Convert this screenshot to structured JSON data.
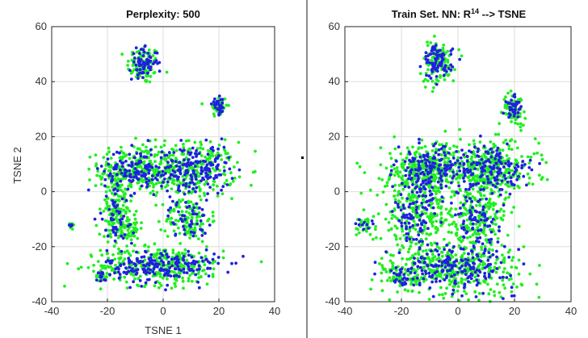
{
  "colors": {
    "series_a": "#2020e0",
    "series_b": "#22ee22",
    "divider": "#8a8a8a",
    "axis": "#262626",
    "grid": "#dedede"
  },
  "chart_data": [
    {
      "type": "scatter",
      "title": "Perplexity: 500",
      "xlabel": "TSNE 1",
      "ylabel": "TSNE 2",
      "xlim": [
        -40,
        40
      ],
      "ylim": [
        -40,
        60
      ],
      "xticks": [
        -40,
        -20,
        0,
        20,
        40
      ],
      "yticks": [
        -40,
        -20,
        0,
        20,
        40,
        60
      ],
      "grid": true,
      "series": [
        {
          "color": "#22ee22",
          "clusters": [
            {
              "center": [
                -7,
                46
              ],
              "spread": [
                3,
                3.5
              ],
              "n": 90
            },
            {
              "center": [
                20,
                31
              ],
              "spread": [
                1.5,
                2
              ],
              "n": 45
            },
            {
              "center": [
                -9,
                8
              ],
              "spread": [
                7,
                4.5
              ],
              "n": 260
            },
            {
              "center": [
                12,
                8
              ],
              "spread": [
                7,
                5
              ],
              "n": 260
            },
            {
              "center": [
                -17,
                -8
              ],
              "spread": [
                3,
                9
              ],
              "n": 150
            },
            {
              "center": [
                -13,
                -13
              ],
              "spread": [
                3,
                2.5
              ],
              "n": 60
            },
            {
              "center": [
                9,
                -10
              ],
              "spread": [
                4,
                4
              ],
              "n": 110
            },
            {
              "center": [
                0,
                -27
              ],
              "spread": [
                11,
                3.5
              ],
              "n": 300
            },
            {
              "center": [
                -22,
                -31
              ],
              "spread": [
                1.2,
                1.2
              ],
              "n": 20
            },
            {
              "center": [
                -33,
                -12
              ],
              "spread": [
                0.6,
                0.6
              ],
              "n": 6
            }
          ]
        },
        {
          "color": "#2020e0",
          "clusters": [
            {
              "center": [
                -7,
                47
              ],
              "spread": [
                2.5,
                2.5
              ],
              "n": 70
            },
            {
              "center": [
                20,
                31
              ],
              "spread": [
                1.2,
                1.5
              ],
              "n": 30
            },
            {
              "center": [
                -9,
                8
              ],
              "spread": [
                6,
                4
              ],
              "n": 140
            },
            {
              "center": [
                12,
                8
              ],
              "spread": [
                6,
                4.5
              ],
              "n": 160
            },
            {
              "center": [
                -17,
                -8
              ],
              "spread": [
                2.5,
                8
              ],
              "n": 60
            },
            {
              "center": [
                9,
                -10
              ],
              "spread": [
                3.5,
                3.5
              ],
              "n": 50
            },
            {
              "center": [
                0,
                -27
              ],
              "spread": [
                10,
                3
              ],
              "n": 200
            },
            {
              "center": [
                -22,
                -31
              ],
              "spread": [
                1,
                1
              ],
              "n": 12
            },
            {
              "center": [
                -33,
                -12
              ],
              "spread": [
                0.5,
                0.5
              ],
              "n": 5
            }
          ]
        }
      ]
    },
    {
      "type": "scatter",
      "title": "Train Set. NN:  R",
      "title_sup": "14",
      "title_tail": " --> TSNE",
      "xlabel": "",
      "ylabel": "",
      "xlim": [
        -40,
        40
      ],
      "ylim": [
        -40,
        60
      ],
      "xticks": [
        -40,
        -20,
        0,
        20,
        40
      ],
      "yticks": [
        -40,
        -20,
        0,
        20,
        40,
        60
      ],
      "grid": true,
      "series": [
        {
          "color": "#22ee22",
          "clusters": [
            {
              "center": [
                -7,
                47
              ],
              "spread": [
                3,
                4
              ],
              "n": 110
            },
            {
              "center": [
                20,
                30
              ],
              "spread": [
                2,
                3
              ],
              "n": 60
            },
            {
              "center": [
                -10,
                8
              ],
              "spread": [
                8,
                5
              ],
              "n": 300
            },
            {
              "center": [
                12,
                8
              ],
              "spread": [
                8,
                5
              ],
              "n": 300
            },
            {
              "center": [
                -15,
                -8
              ],
              "spread": [
                6,
                9
              ],
              "n": 260
            },
            {
              "center": [
                6,
                -10
              ],
              "spread": [
                6,
                5
              ],
              "n": 200
            },
            {
              "center": [
                0,
                -28
              ],
              "spread": [
                11,
                5
              ],
              "n": 340
            },
            {
              "center": [
                -20,
                -31
              ],
              "spread": [
                3,
                3
              ],
              "n": 60
            },
            {
              "center": [
                -33,
                -12
              ],
              "spread": [
                2,
                2
              ],
              "n": 30
            }
          ]
        },
        {
          "color": "#2020e0",
          "clusters": [
            {
              "center": [
                -7,
                47
              ],
              "spread": [
                2.5,
                3
              ],
              "n": 80
            },
            {
              "center": [
                20,
                31
              ],
              "spread": [
                1.5,
                2
              ],
              "n": 35
            },
            {
              "center": [
                -10,
                8
              ],
              "spread": [
                6,
                4
              ],
              "n": 150
            },
            {
              "center": [
                12,
                8
              ],
              "spread": [
                7,
                4.5
              ],
              "n": 160
            },
            {
              "center": [
                -15,
                -8
              ],
              "spread": [
                4,
                7
              ],
              "n": 100
            },
            {
              "center": [
                6,
                -10
              ],
              "spread": [
                4.5,
                4
              ],
              "n": 70
            },
            {
              "center": [
                0,
                -27
              ],
              "spread": [
                10,
                4
              ],
              "n": 200
            },
            {
              "center": [
                -20,
                -31
              ],
              "spread": [
                2,
                2
              ],
              "n": 20
            },
            {
              "center": [
                -33,
                -12
              ],
              "spread": [
                1.2,
                1.2
              ],
              "n": 10
            }
          ]
        }
      ]
    }
  ]
}
